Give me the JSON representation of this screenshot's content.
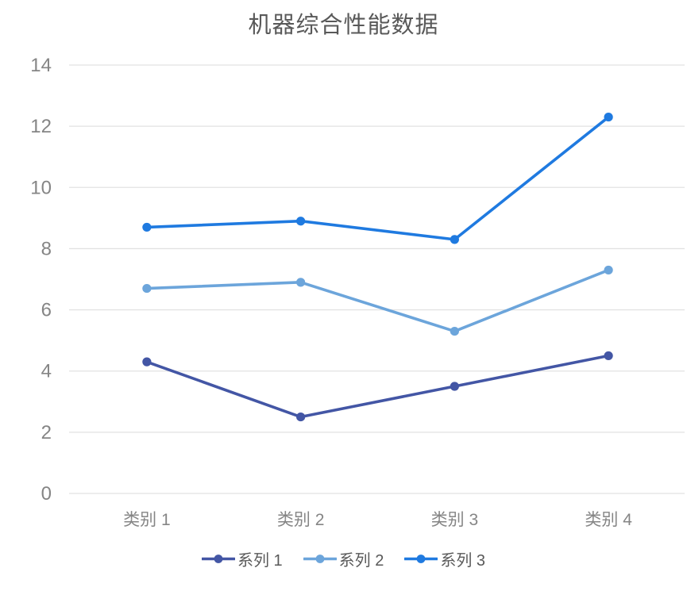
{
  "chart_data": {
    "type": "line",
    "title": "机器综合性能数据",
    "categories": [
      "类别 1",
      "类别 2",
      "类别 3",
      "类别 4"
    ],
    "series": [
      {
        "name": "系列 1",
        "color": "#4356A5",
        "values": [
          4.3,
          2.5,
          3.5,
          4.5
        ]
      },
      {
        "name": "系列 2",
        "color": "#6CA5DB",
        "values": [
          6.7,
          6.9,
          5.3,
          7.3
        ]
      },
      {
        "name": "系列 3",
        "color": "#1F7AE0",
        "values": [
          8.7,
          8.9,
          8.3,
          12.3
        ]
      }
    ],
    "xlabel": "",
    "ylabel": "",
    "ylim": [
      0,
      14
    ],
    "yticks": [
      0,
      2,
      4,
      6,
      8,
      10,
      12,
      14
    ],
    "grid": true,
    "legend_position": "bottom"
  },
  "colors": {
    "title_text": "#595959",
    "axis_label": "#858585",
    "gridline": "#E2E2E2",
    "legend_text": "#595959",
    "background": "#FFFFFF"
  }
}
